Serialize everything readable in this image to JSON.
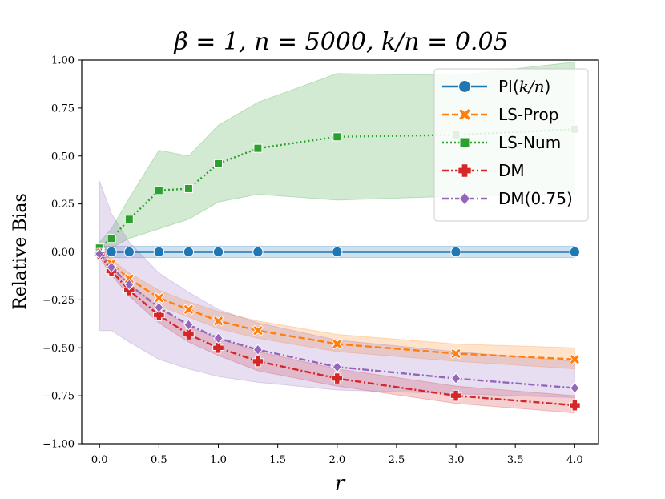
{
  "chart_data": {
    "type": "line",
    "title": "β = 1, n = 5000, k/n = 0.05",
    "xlabel": "r",
    "ylabel": "Relative Bias",
    "xlim": [
      -0.15,
      4.2
    ],
    "ylim": [
      -1.0,
      1.0
    ],
    "xticks": [
      0.0,
      0.5,
      1.0,
      1.5,
      2.0,
      2.5,
      3.0,
      3.5,
      4.0
    ],
    "xtick_labels": [
      "0.0",
      "0.5",
      "1.0",
      "1.5",
      "2.0",
      "2.5",
      "3.0",
      "3.5",
      "4.0"
    ],
    "yticks": [
      -1.0,
      -0.75,
      -0.5,
      -0.25,
      0.0,
      0.25,
      0.5,
      0.75,
      1.0
    ],
    "ytick_labels": [
      "−1.00",
      "−0.75",
      "−0.50",
      "−0.25",
      "0.00",
      "0.25",
      "0.50",
      "0.75",
      "1.00"
    ],
    "legend_position": "top-right",
    "series": [
      {
        "name": "PI(k/n)",
        "label_main": "PI(",
        "label_italic": "k/n",
        "label_end": ")",
        "color": "#1f77b4",
        "dash": "solid",
        "marker": "circle",
        "x": [
          0.0,
          0.1,
          0.25,
          0.5,
          0.75,
          1.0,
          1.333,
          2.0,
          3.0,
          4.0
        ],
        "y": [
          0.0,
          0.0,
          0.0,
          0.0,
          0.0,
          0.0,
          0.0,
          0.0,
          0.0,
          0.0
        ],
        "lower": [
          -0.03,
          -0.03,
          -0.03,
          -0.03,
          -0.03,
          -0.03,
          -0.03,
          -0.03,
          -0.03,
          -0.03
        ],
        "upper": [
          0.03,
          0.03,
          0.03,
          0.03,
          0.03,
          0.03,
          0.03,
          0.03,
          0.03,
          0.03
        ]
      },
      {
        "name": "LS-Prop",
        "color": "#ff7f0e",
        "dash": "dashed",
        "marker": "x",
        "x": [
          0.0,
          0.1,
          0.25,
          0.5,
          0.75,
          1.0,
          1.333,
          2.0,
          3.0,
          4.0
        ],
        "y": [
          0.0,
          -0.06,
          -0.14,
          -0.24,
          -0.3,
          -0.36,
          -0.41,
          -0.48,
          -0.53,
          -0.56
        ],
        "lower": [
          -0.02,
          -0.08,
          -0.17,
          -0.28,
          -0.34,
          -0.4,
          -0.45,
          -0.52,
          -0.57,
          -0.61
        ],
        "upper": [
          0.02,
          -0.04,
          -0.11,
          -0.2,
          -0.26,
          -0.31,
          -0.36,
          -0.43,
          -0.48,
          -0.5
        ]
      },
      {
        "name": "LS-Num",
        "color": "#2ca02c",
        "dash": "dotted",
        "marker": "square",
        "x": [
          0.0,
          0.1,
          0.25,
          0.5,
          0.75,
          1.0,
          1.333,
          2.0,
          3.0,
          4.0
        ],
        "y": [
          0.02,
          0.07,
          0.17,
          0.32,
          0.33,
          0.46,
          0.54,
          0.6,
          0.61,
          0.64
        ],
        "lower": [
          0.0,
          0.02,
          0.07,
          0.12,
          0.17,
          0.26,
          0.3,
          0.27,
          0.29,
          0.3
        ],
        "upper": [
          0.05,
          0.12,
          0.28,
          0.53,
          0.5,
          0.66,
          0.78,
          0.93,
          0.92,
          0.99
        ]
      },
      {
        "name": "DM",
        "color": "#d62728",
        "dash": "dashdot",
        "marker": "plus",
        "x": [
          0.0,
          0.1,
          0.25,
          0.5,
          0.75,
          1.0,
          1.333,
          2.0,
          3.0,
          4.0
        ],
        "y": [
          -0.01,
          -0.1,
          -0.2,
          -0.33,
          -0.43,
          -0.5,
          -0.57,
          -0.66,
          -0.75,
          -0.8
        ],
        "lower": [
          -0.03,
          -0.12,
          -0.23,
          -0.37,
          -0.47,
          -0.54,
          -0.62,
          -0.7,
          -0.79,
          -0.84
        ],
        "upper": [
          0.01,
          -0.08,
          -0.17,
          -0.29,
          -0.39,
          -0.45,
          -0.52,
          -0.61,
          -0.7,
          -0.75
        ]
      },
      {
        "name": "DM(0.75)",
        "color": "#9467bd",
        "dash": "dashdot",
        "marker": "diamond",
        "x": [
          0.0,
          0.1,
          0.25,
          0.5,
          0.75,
          1.0,
          1.333,
          2.0,
          3.0,
          4.0
        ],
        "y": [
          -0.01,
          -0.08,
          -0.17,
          -0.29,
          -0.38,
          -0.45,
          -0.51,
          -0.6,
          -0.66,
          -0.71
        ],
        "lower": [
          -0.41,
          -0.41,
          -0.47,
          -0.56,
          -0.61,
          -0.65,
          -0.68,
          -0.72,
          -0.74,
          -0.76
        ],
        "upper": [
          0.37,
          0.2,
          0.05,
          -0.11,
          -0.21,
          -0.3,
          -0.37,
          -0.46,
          -0.52,
          -0.57
        ]
      }
    ]
  }
}
